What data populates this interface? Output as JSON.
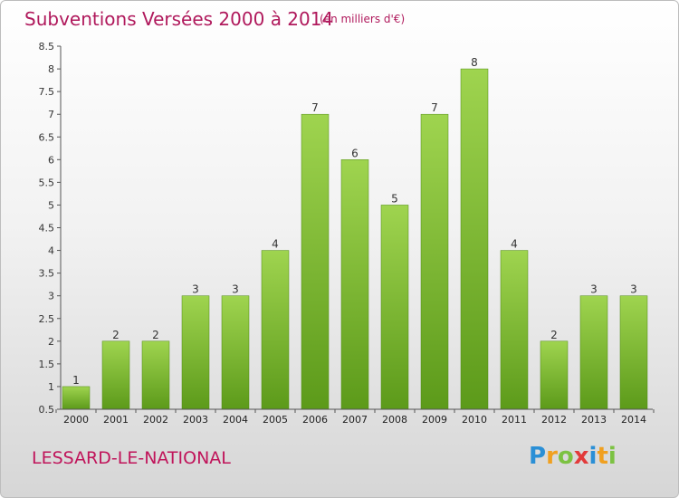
{
  "header": {
    "title": "Subventions Versées 2000 à 2014",
    "unit_note": "(en milliers d'€)"
  },
  "footer": {
    "location": "LESSARD-LE-NATIONAL",
    "logo_text": "Proxiti"
  },
  "colors": {
    "title": "#b0195c",
    "bar_top": "#9fd44f",
    "bar_bottom": "#5c9a1a"
  },
  "chart_data": {
    "type": "bar",
    "title": "Subventions Versées 2000 à 2014",
    "subtitle": "(en milliers d'€)",
    "xlabel": "",
    "ylabel": "",
    "categories": [
      "2000",
      "2001",
      "2002",
      "2003",
      "2004",
      "2005",
      "2006",
      "2007",
      "2008",
      "2009",
      "2010",
      "2011",
      "2012",
      "2013",
      "2014"
    ],
    "values": [
      1,
      2,
      2,
      3,
      3,
      4,
      7,
      6,
      5,
      7,
      8,
      4,
      2,
      3,
      3
    ],
    "data_labels": [
      "1",
      "2",
      "2",
      "3",
      "3",
      "4",
      "7",
      "6",
      "5",
      "7",
      "8",
      "4",
      "2",
      "3",
      "3"
    ],
    "ylim": [
      0.5,
      8.5
    ],
    "yticks": [
      "0.5",
      "1",
      "1.5",
      "2",
      "2.5",
      "3",
      "3.5",
      "4",
      "4.5",
      "5",
      "5.5",
      "6",
      "6.5",
      "7",
      "7.5",
      "8",
      "8.5"
    ],
    "ytick_values": [
      0.5,
      1,
      1.5,
      2,
      2.5,
      3,
      3.5,
      4,
      4.5,
      5,
      5.5,
      6,
      6.5,
      7,
      7.5,
      8,
      8.5
    ],
    "grid": false,
    "legend": "none"
  }
}
